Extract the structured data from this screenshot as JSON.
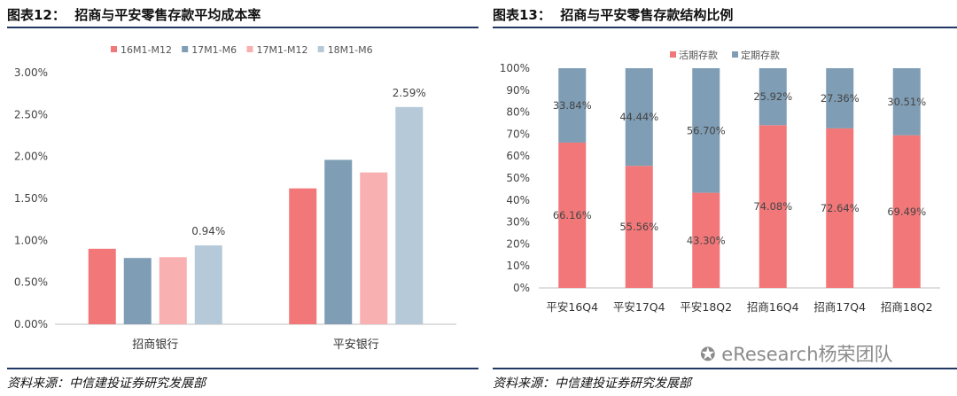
{
  "left": {
    "figure_no": "图表12：",
    "title": "招商与平安零售存款平均成本率",
    "source": "资料来源：中信建投证券研究发展部"
  },
  "right": {
    "figure_no": "图表13：",
    "title": "招商与平安零售存款结构比例",
    "source": "资料来源：中信建投证券研究发展部"
  },
  "watermark": "eResearch杨荣团队",
  "chart_data": [
    {
      "type": "bar",
      "categories": [
        "招商银行",
        "平安银行"
      ],
      "series": [
        {
          "name": "16M1-M12",
          "color": "#f27779",
          "values": [
            0.9,
            1.62
          ]
        },
        {
          "name": "17M1-M6",
          "color": "#7f9db4",
          "values": [
            0.79,
            1.96
          ]
        },
        {
          "name": "17M1-M12",
          "color": "#f9b0b1",
          "values": [
            0.8,
            1.81
          ]
        },
        {
          "name": "18M1-M6",
          "color": "#b5c9d8",
          "values": [
            0.94,
            2.59
          ]
        }
      ],
      "data_labels": [
        {
          "series": 3,
          "category": 0,
          "text": "0.94%"
        },
        {
          "series": 3,
          "category": 1,
          "text": "2.59%"
        }
      ],
      "ylim": [
        0,
        3.0
      ],
      "yticks": [
        "0.00%",
        "0.50%",
        "1.00%",
        "1.50%",
        "2.00%",
        "2.50%",
        "3.00%"
      ],
      "legend_position": "top",
      "grid": false
    },
    {
      "type": "bar",
      "stacked": true,
      "categories": [
        "平安16Q4",
        "平安17Q4",
        "平安18Q2",
        "招商16Q4",
        "招商17Q4",
        "招商18Q2"
      ],
      "series": [
        {
          "name": "活期存款",
          "color": "#f27779",
          "values": [
            66.16,
            55.56,
            43.3,
            74.08,
            72.64,
            69.49
          ],
          "labels": [
            "66.16%",
            "55.56%",
            "43.30%",
            "74.08%",
            "72.64%",
            "69.49%"
          ]
        },
        {
          "name": "定期存款",
          "color": "#7f9db4",
          "values": [
            33.84,
            44.44,
            56.7,
            25.92,
            27.36,
            30.51
          ],
          "labels": [
            "33.84%",
            "44.44%",
            "56.70%",
            "25.92%",
            "27.36%",
            "30.51%"
          ]
        }
      ],
      "ylim": [
        0,
        100
      ],
      "yticks": [
        "0%",
        "10%",
        "20%",
        "30%",
        "40%",
        "50%",
        "60%",
        "70%",
        "80%",
        "90%",
        "100%"
      ],
      "legend_position": "top",
      "grid": false
    }
  ]
}
